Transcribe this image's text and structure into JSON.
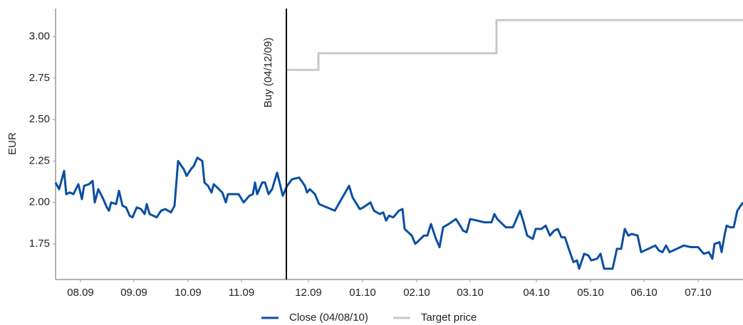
{
  "chart_data": {
    "type": "line",
    "y_label": "EUR",
    "xlim": [
      0,
      965
    ],
    "xticks": [
      {
        "value": 35,
        "label": "08.09"
      },
      {
        "value": 110,
        "label": "09.09"
      },
      {
        "value": 186,
        "label": "10.09"
      },
      {
        "value": 261,
        "label": "11.09"
      },
      {
        "value": 355,
        "label": "12.09"
      },
      {
        "value": 431,
        "label": "01.10"
      },
      {
        "value": 507,
        "label": "02.10"
      },
      {
        "value": 582,
        "label": "03.10"
      },
      {
        "value": 675,
        "label": "04.10"
      },
      {
        "value": 751,
        "label": "05.10"
      },
      {
        "value": 826,
        "label": "06.10"
      },
      {
        "value": 902,
        "label": "07.10"
      }
    ],
    "ylim": [
      1.535,
      3.17
    ],
    "yticks": [
      {
        "value": 1.75,
        "label": "1.75"
      },
      {
        "value": 2.0,
        "label": "2.00"
      },
      {
        "value": 2.25,
        "label": "2.25"
      },
      {
        "value": 2.5,
        "label": "2.50"
      },
      {
        "value": 2.75,
        "label": "2.75"
      },
      {
        "value": 3.0,
        "label": "3.00"
      }
    ],
    "legend": "bottom",
    "annotations": [
      {
        "text": "Buy (04/12/09)",
        "x": 324
      }
    ],
    "series": [
      {
        "name": "Close (04/08/10)",
        "color": "#0a4fa3",
        "x": [
          0,
          5,
          12,
          15,
          20,
          25,
          32,
          37,
          40,
          47,
          52,
          55,
          60,
          67,
          72,
          75,
          78,
          85,
          89,
          94,
          99,
          104,
          108,
          114,
          120,
          125,
          128,
          132,
          137,
          142,
          148,
          154,
          162,
          167,
          172,
          180,
          184,
          190,
          194,
          199,
          206,
          209,
          214,
          219,
          222,
          227,
          234,
          239,
          242,
          252,
          257,
          264,
          272,
          277,
          280,
          283,
          290,
          294,
          299,
          304,
          311,
          319,
          325,
          332,
          342,
          350,
          353,
          357,
          364,
          370,
          392,
          412,
          417,
          427,
          432,
          442,
          447,
          455,
          460,
          464,
          468,
          474,
          482,
          487,
          490,
          500,
          505,
          510,
          517,
          522,
          527,
          534,
          539,
          544,
          552,
          562,
          568,
          572,
          577,
          582,
          602,
          612,
          616,
          620,
          632,
          642,
          652,
          657,
          662,
          670,
          674,
          682,
          688,
          694,
          700,
          705,
          710,
          715,
          722,
          727,
          732,
          735,
          742,
          748,
          752,
          760,
          765,
          770,
          782,
          788,
          794,
          799,
          804,
          809,
          817,
          822,
          842,
          847,
          852,
          857,
          862,
          872,
          882,
          892,
          897,
          902,
          910,
          917,
          922,
          925,
          932,
          935,
          939,
          942,
          947,
          952,
          957,
          965
        ],
        "values": [
          2.12,
          2.08,
          2.19,
          2.05,
          2.06,
          2.05,
          2.11,
          2.02,
          2.1,
          2.11,
          2.13,
          2.0,
          2.08,
          2.02,
          1.97,
          1.95,
          2.0,
          1.99,
          2.07,
          1.98,
          1.97,
          1.92,
          1.91,
          1.97,
          1.96,
          1.93,
          1.99,
          1.93,
          1.92,
          1.91,
          1.95,
          1.96,
          1.94,
          1.98,
          2.25,
          2.2,
          2.16,
          2.2,
          2.22,
          2.27,
          2.25,
          2.12,
          2.1,
          2.06,
          2.11,
          2.09,
          2.06,
          2.0,
          2.05,
          2.05,
          2.05,
          2.0,
          2.04,
          2.05,
          2.12,
          2.05,
          2.12,
          2.12,
          2.05,
          2.08,
          2.18,
          2.04,
          2.1,
          2.14,
          2.15,
          2.1,
          2.06,
          2.08,
          2.05,
          1.99,
          1.95,
          2.1,
          2.03,
          1.96,
          1.97,
          2.0,
          1.95,
          1.93,
          1.94,
          1.89,
          1.92,
          1.91,
          1.95,
          1.96,
          1.84,
          1.8,
          1.75,
          1.77,
          1.8,
          1.8,
          1.87,
          1.78,
          1.73,
          1.85,
          1.87,
          1.9,
          1.86,
          1.83,
          1.82,
          1.9,
          1.88,
          1.88,
          1.93,
          1.9,
          1.85,
          1.85,
          1.95,
          1.88,
          1.8,
          1.78,
          1.84,
          1.84,
          1.86,
          1.8,
          1.83,
          1.84,
          1.79,
          1.79,
          1.7,
          1.64,
          1.65,
          1.6,
          1.69,
          1.68,
          1.65,
          1.66,
          1.69,
          1.6,
          1.6,
          1.72,
          1.72,
          1.84,
          1.8,
          1.81,
          1.8,
          1.7,
          1.74,
          1.71,
          1.7,
          1.74,
          1.7,
          1.72,
          1.74,
          1.73,
          1.73,
          1.73,
          1.69,
          1.7,
          1.66,
          1.75,
          1.76,
          1.7,
          1.8,
          1.86,
          1.85,
          1.85,
          1.95,
          2.0
        ]
      },
      {
        "name": "Target price",
        "color": "#c8c8c8",
        "x": [
          324,
          369,
          369,
          619,
          619,
          965
        ],
        "values": [
          2.8,
          2.8,
          2.9,
          2.9,
          3.1,
          3.1
        ]
      }
    ]
  }
}
